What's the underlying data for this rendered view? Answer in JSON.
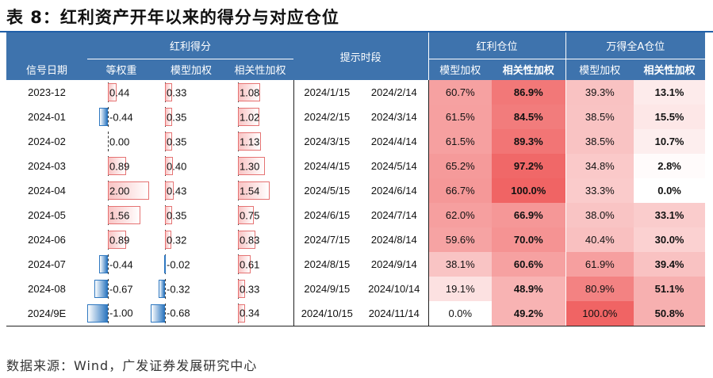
{
  "title": "表 8：红利资产开年以来的得分与对应仓位",
  "header": {
    "group_score": "红利得分",
    "group_hint": "提示时段",
    "group_dividend_position": "红利仓位",
    "group_wande_position": "万得全A仓位",
    "col_signal_date": "信号日期",
    "col_equal_weight": "等权重",
    "col_model_weight": "模型加权",
    "col_corr_weight": "相关性加权",
    "col_div_model": "模型加权",
    "col_div_corr": "相关性加权",
    "col_wa_model": "模型加权",
    "col_wa_corr": "相关性加权"
  },
  "colors": {
    "header_bg": "#3e73ad",
    "positive_bar": "#e57373",
    "negative_bar": "#2f78c0",
    "heat_max": "#f06b6b",
    "heat_min": "#ffffff"
  },
  "rows": [
    {
      "date": "2023-12",
      "eq": 0.44,
      "eq_label": "0.44",
      "model": 0.33,
      "model_label": "0.33",
      "corr": 1.08,
      "corr_label": "1.08",
      "start": "2024/1/15",
      "end": "2024/2/14",
      "div_model": "60.7%",
      "div_corr": "86.9%",
      "wa_model": "39.3%",
      "wa_corr": "13.1%"
    },
    {
      "date": "2024-01",
      "eq": -0.44,
      "eq_label": "-0.44",
      "model": 0.35,
      "model_label": "0.35",
      "corr": 1.02,
      "corr_label": "1.02",
      "start": "2024/2/15",
      "end": "2024/3/14",
      "div_model": "61.5%",
      "div_corr": "84.5%",
      "wa_model": "38.5%",
      "wa_corr": "15.5%"
    },
    {
      "date": "2024-02",
      "eq": 0.0,
      "eq_label": "0.00",
      "model": 0.35,
      "model_label": "0.35",
      "corr": 1.13,
      "corr_label": "1.13",
      "start": "2024/3/15",
      "end": "2024/4/14",
      "div_model": "61.5%",
      "div_corr": "89.3%",
      "wa_model": "38.5%",
      "wa_corr": "10.7%"
    },
    {
      "date": "2024-03",
      "eq": 0.89,
      "eq_label": "0.89",
      "model": 0.4,
      "model_label": "0.40",
      "corr": 1.3,
      "corr_label": "1.30",
      "start": "2024/4/15",
      "end": "2024/5/14",
      "div_model": "65.2%",
      "div_corr": "97.2%",
      "wa_model": "34.8%",
      "wa_corr": "2.8%"
    },
    {
      "date": "2024-04",
      "eq": 2.0,
      "eq_label": "2.00",
      "model": 0.43,
      "model_label": "0.43",
      "corr": 1.54,
      "corr_label": "1.54",
      "start": "2024/5/15",
      "end": "2024/6/14",
      "div_model": "66.7%",
      "div_corr": "100.0%",
      "wa_model": "33.3%",
      "wa_corr": "0.0%"
    },
    {
      "date": "2024-05",
      "eq": 1.56,
      "eq_label": "1.56",
      "model": 0.35,
      "model_label": "0.35",
      "corr": 0.75,
      "corr_label": "0.75",
      "start": "2024/6/15",
      "end": "2024/7/14",
      "div_model": "62.0%",
      "div_corr": "66.9%",
      "wa_model": "38.0%",
      "wa_corr": "33.1%"
    },
    {
      "date": "2024-06",
      "eq": 0.89,
      "eq_label": "0.89",
      "model": 0.32,
      "model_label": "0.32",
      "corr": 0.83,
      "corr_label": "0.83",
      "start": "2024/7/15",
      "end": "2024/8/14",
      "div_model": "59.6%",
      "div_corr": "70.0%",
      "wa_model": "40.4%",
      "wa_corr": "30.0%"
    },
    {
      "date": "2024-07",
      "eq": -0.44,
      "eq_label": "-0.44",
      "model": -0.02,
      "model_label": "-0.02",
      "corr": 0.61,
      "corr_label": "0.61",
      "start": "2024/8/15",
      "end": "2024/9/14",
      "div_model": "38.1%",
      "div_corr": "60.6%",
      "wa_model": "61.9%",
      "wa_corr": "39.4%"
    },
    {
      "date": "2024-08",
      "eq": -0.67,
      "eq_label": "-0.67",
      "model": -0.32,
      "model_label": "-0.32",
      "corr": 0.33,
      "corr_label": "0.33",
      "start": "2024/9/15",
      "end": "2024/10/14",
      "div_model": "19.1%",
      "div_corr": "48.9%",
      "wa_model": "80.9%",
      "wa_corr": "51.1%"
    },
    {
      "date": "2024/9E",
      "eq": -1.0,
      "eq_label": "-1.00",
      "model": -0.68,
      "model_label": "-0.68",
      "corr": 0.34,
      "corr_label": "0.34",
      "start": "2024/10/15",
      "end": "2024/11/14",
      "div_model": "0.0%",
      "div_corr": "49.2%",
      "wa_model": "100.0%",
      "wa_corr": "50.8%"
    }
  ],
  "source": "数据来源：Wind，广发证券发展研究中心"
}
